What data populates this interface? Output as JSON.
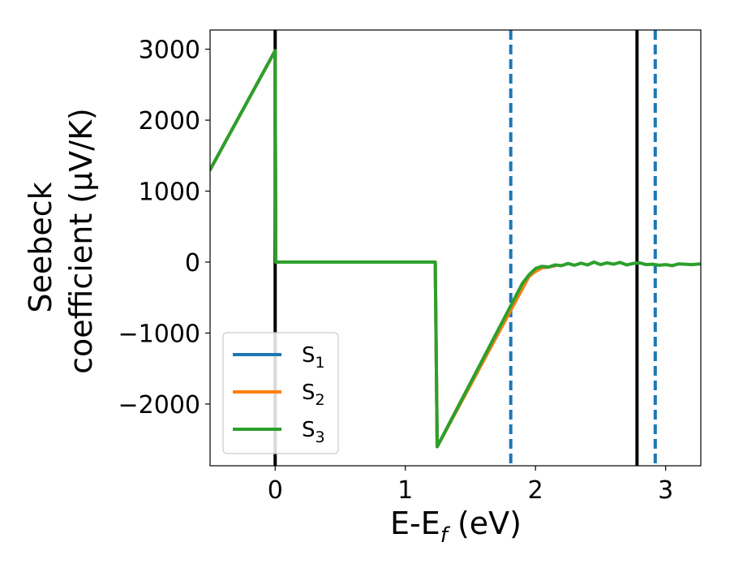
{
  "chart_data": {
    "type": "line",
    "xlabel": "E-E",
    "xlabel_sub": "f",
    "xlabel_unit": " (eV)",
    "ylabel_line1": "Seebeck",
    "ylabel_line2": "coefficient  (μV/K)",
    "xlim": [
      -0.5,
      3.27
    ],
    "ylim": [
      -2870,
      3270
    ],
    "xticks": [
      {
        "value": 0,
        "label": "0"
      },
      {
        "value": 1,
        "label": "1"
      },
      {
        "value": 2,
        "label": "2"
      },
      {
        "value": 3,
        "label": "3"
      }
    ],
    "yticks": [
      {
        "value": -2000,
        "label": "−2000"
      },
      {
        "value": -1000,
        "label": "−1000"
      },
      {
        "value": 0,
        "label": "0"
      },
      {
        "value": 1000,
        "label": "1000"
      },
      {
        "value": 2000,
        "label": "2000"
      },
      {
        "value": 3000,
        "label": "3000"
      }
    ],
    "grid": false,
    "legend_placement": "lower-left",
    "series": [
      {
        "name": "S",
        "sub": "1",
        "color": "#1f77b4",
        "points": [
          [
            -0.5,
            1300
          ],
          [
            0.0,
            2980
          ],
          [
            0.005,
            0
          ],
          [
            1.23,
            0
          ],
          [
            1.245,
            -2600
          ],
          [
            1.95,
            -200
          ],
          [
            2.0,
            -130
          ],
          [
            2.05,
            -80
          ],
          [
            2.1,
            -70
          ],
          [
            2.15,
            -50
          ]
        ]
      },
      {
        "name": "S",
        "sub": "2",
        "color": "#ff7f0e",
        "points": [
          [
            -0.5,
            1300
          ],
          [
            0.0,
            2980
          ],
          [
            0.005,
            0
          ],
          [
            1.23,
            0
          ],
          [
            1.245,
            -2600
          ],
          [
            1.95,
            -200
          ],
          [
            2.0,
            -130
          ],
          [
            2.05,
            -80
          ],
          [
            2.1,
            -70
          ],
          [
            2.15,
            -50
          ]
        ]
      },
      {
        "name": "S",
        "sub": "3",
        "color": "#2ca02c",
        "points": [
          [
            -0.5,
            1300
          ],
          [
            0.0,
            2980
          ],
          [
            0.005,
            0
          ],
          [
            1.23,
            0
          ],
          [
            1.245,
            -2600
          ],
          [
            1.9,
            -300
          ],
          [
            1.95,
            -180
          ],
          [
            2.0,
            -90
          ],
          [
            2.05,
            -60
          ],
          [
            2.1,
            -70
          ],
          [
            2.15,
            -40
          ],
          [
            2.2,
            -50
          ],
          [
            2.25,
            -20
          ],
          [
            2.3,
            -45
          ],
          [
            2.35,
            -15
          ],
          [
            2.4,
            -40
          ],
          [
            2.45,
            0
          ],
          [
            2.5,
            -35
          ],
          [
            2.55,
            -10
          ],
          [
            2.6,
            -30
          ],
          [
            2.65,
            -5
          ],
          [
            2.7,
            -40
          ],
          [
            2.75,
            -20
          ],
          [
            2.8,
            -10
          ],
          [
            2.85,
            -35
          ],
          [
            2.9,
            -30
          ],
          [
            2.95,
            -45
          ],
          [
            3.0,
            -35
          ],
          [
            3.05,
            -50
          ],
          [
            3.1,
            -25
          ],
          [
            3.15,
            -30
          ],
          [
            3.2,
            -35
          ],
          [
            3.27,
            -25
          ]
        ]
      }
    ],
    "vlines": [
      {
        "x": 0.0,
        "color": "#000000",
        "style": "solid"
      },
      {
        "x": 2.78,
        "color": "#000000",
        "style": "solid"
      },
      {
        "x": 1.81,
        "color": "#1f77b4",
        "style": "dashed"
      },
      {
        "x": 2.92,
        "color": "#1f77b4",
        "style": "dashed"
      }
    ]
  }
}
